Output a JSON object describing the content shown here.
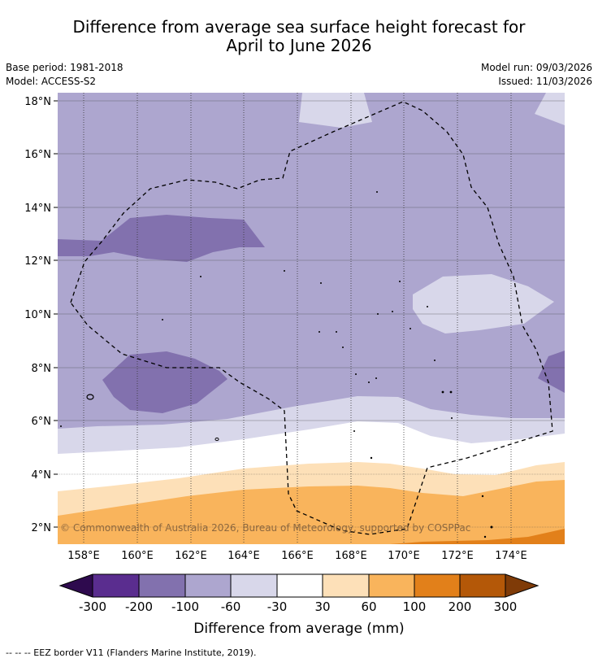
{
  "title_line1": "Difference from average sea surface height forecast for",
  "title_line2": "April to June 2026",
  "base_period": "Base period: 1981-2018",
  "model": "Model: ACCESS-S2",
  "model_run": "Model run: 09/03/2026",
  "issued": "Issued: 11/03/2026",
  "map": {
    "lat_labels": [
      "18°N",
      "16°N",
      "14°N",
      "12°N",
      "10°N",
      "8°N",
      "6°N",
      "4°N",
      "2°N"
    ],
    "lon_labels": [
      "158°E",
      "160°E",
      "162°E",
      "164°E",
      "166°E",
      "168°E",
      "170°E",
      "172°E",
      "174°E"
    ],
    "copyright": "© Commonwealth of Australia 2026, Bureau of Meteorology, supported by COSPPac"
  },
  "legend": {
    "colors": [
      "#2e0a4e",
      "#5a2d8f",
      "#8271ae",
      "#ada6cf",
      "#d8d7ea",
      "#ffffff",
      "#fde0b8",
      "#f9b45c",
      "#e2801a",
      "#b45808",
      "#7f3b08"
    ],
    "tick_labels": [
      "-300",
      "-200",
      "-100",
      "-60",
      "-30",
      "30",
      "60",
      "100",
      "200",
      "300"
    ],
    "axis_label": "Difference from average (mm)"
  },
  "footer_note": "-- -- -- EEZ border V11 (Flanders Marine Institute, 2019)."
}
